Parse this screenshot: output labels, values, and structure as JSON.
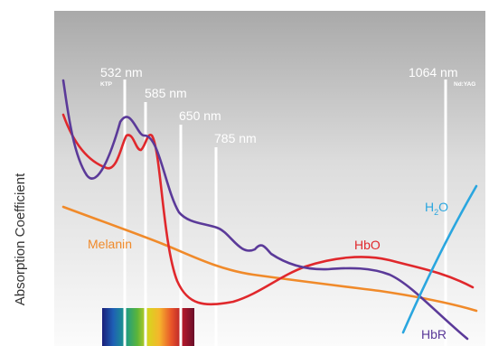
{
  "chart_data": {
    "type": "line",
    "ylabel": "Absorption Coefficient",
    "x_unit": "nm",
    "wavelength_markers": [
      {
        "label": "532 nm",
        "sublabel": "KTP"
      },
      {
        "label": "585 nm",
        "sublabel": ""
      },
      {
        "label": "650 nm",
        "sublabel": ""
      },
      {
        "label": "785 nm",
        "sublabel": ""
      },
      {
        "label": "1064 nm",
        "sublabel": "Nd:YAG"
      }
    ],
    "series": [
      {
        "name": "Melanin",
        "color": "#f08a2a"
      },
      {
        "name": "HbO",
        "color": "#e0282c"
      },
      {
        "name": "HbR",
        "color": "#5b3a99"
      },
      {
        "name": "H2O",
        "color": "#2aa6df"
      }
    ],
    "legend_placement": "inline labels next to curves",
    "grid": false,
    "background": "gradient grey",
    "spectrum_bar": true
  }
}
